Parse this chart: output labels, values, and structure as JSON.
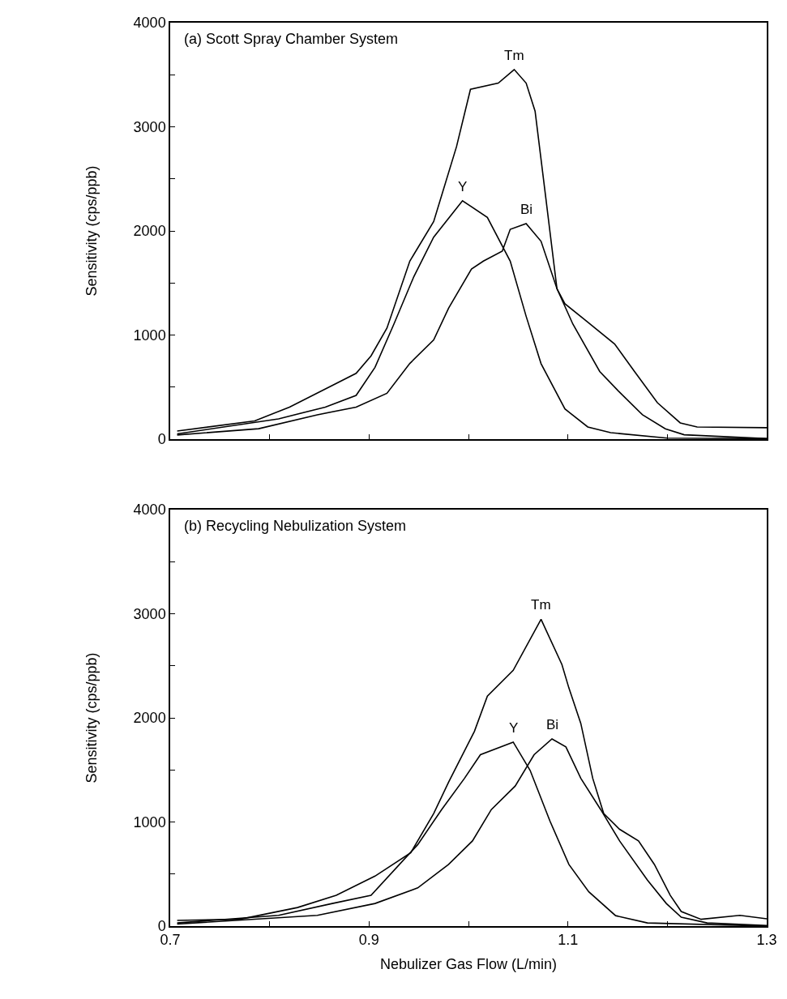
{
  "chart_data": [
    {
      "type": "line",
      "title": "(a) Scott Spray Chamber System",
      "ylabel": "Sensitivity (cps/ppb)",
      "xlim": [
        0.7,
        1.3
      ],
      "xticks": [
        {
          "value": 0.7,
          "label": null
        },
        {
          "value": 0.8,
          "label": null
        },
        {
          "value": 0.9,
          "label": null
        },
        {
          "value": 1.0,
          "label": null
        },
        {
          "value": 1.1,
          "label": null
        },
        {
          "value": 1.2,
          "label": null
        },
        {
          "value": 1.3,
          "label": null
        }
      ],
      "ylim": [
        0,
        4000
      ],
      "yticks": [
        0,
        {
          "value": 500,
          "label": null
        },
        1000,
        {
          "value": 1500,
          "label": null
        },
        2000,
        {
          "value": 2500,
          "label": null
        },
        3000,
        {
          "value": 3500,
          "label": null
        },
        4000
      ],
      "tick_labels": "y",
      "legend": false,
      "line_style": "solid",
      "marker": "none",
      "series": [
        {
          "name": "Y",
          "color": "#000000",
          "x": [
            0.707,
            0.809,
            0.856,
            0.887,
            0.906,
            0.925,
            0.945,
            0.965,
            0.994,
            1.019,
            1.042,
            1.058,
            1.073,
            1.097,
            1.12,
            1.143,
            1.2,
            1.3
          ],
          "values": [
            50,
            195,
            308,
            420,
            690,
            1105,
            1560,
            1940,
            2290,
            2130,
            1710,
            1180,
            725,
            290,
            117,
            62,
            10,
            5
          ]
        },
        {
          "name": "Bi",
          "color": "#000000",
          "x": [
            0.707,
            0.789,
            0.848,
            0.887,
            0.918,
            0.941,
            0.965,
            0.98,
            1.003,
            1.015,
            1.034,
            1.042,
            1.058,
            1.073,
            1.089,
            1.105,
            1.132,
            1.151,
            1.175,
            1.198,
            1.217,
            1.3
          ],
          "values": [
            40,
            100,
            234,
            308,
            440,
            727,
            953,
            1258,
            1633,
            1710,
            1805,
            2015,
            2070,
            1900,
            1445,
            1105,
            650,
            460,
            234,
            100,
            42,
            5
          ]
        },
        {
          "name": "Tm",
          "color": "#000000",
          "x": [
            0.707,
            0.785,
            0.82,
            0.863,
            0.887,
            0.902,
            0.918,
            0.941,
            0.965,
            0.988,
            1.002,
            1.03,
            1.046,
            1.058,
            1.067,
            1.078,
            1.089,
            1.097,
            1.118,
            1.147,
            1.167,
            1.19,
            1.213,
            1.23,
            1.3
          ],
          "values": [
            78,
            175,
            308,
            516,
            632,
            800,
            1066,
            1710,
            2090,
            2810,
            3360,
            3420,
            3550,
            3420,
            3150,
            2300,
            1445,
            1300,
            1140,
            914,
            650,
            350,
            156,
            117,
            110
          ]
        }
      ]
    },
    {
      "type": "line",
      "title": "(b) Recycling Nebulization System",
      "ylabel": "Sensitivity (cps/ppb)",
      "xlabel": "Nebulizer Gas Flow (L/min)",
      "xlim": [
        0.7,
        1.3
      ],
      "xticks": [
        0.7,
        {
          "value": 0.8,
          "label": null
        },
        0.9,
        {
          "value": 1.0,
          "label": null
        },
        1.1,
        {
          "value": 1.2,
          "label": null
        },
        1.3
      ],
      "ylim": [
        0,
        4000
      ],
      "yticks": [
        0,
        {
          "value": 500,
          "label": null
        },
        1000,
        {
          "value": 1500,
          "label": null
        },
        2000,
        {
          "value": 2500,
          "label": null
        },
        3000,
        {
          "value": 3500,
          "label": null
        },
        4000
      ],
      "legend": false,
      "line_style": "solid",
      "marker": "none",
      "series": [
        {
          "name": "Y",
          "color": "#000000",
          "x": [
            0.707,
            0.809,
            0.863,
            0.902,
            0.949,
            0.973,
            0.996,
            1.012,
            1.045,
            1.062,
            1.082,
            1.101,
            1.121,
            1.148,
            1.18,
            1.3
          ],
          "values": [
            30,
            103,
            217,
            295,
            783,
            1119,
            1419,
            1646,
            1767,
            1496,
            1008,
            592,
            329,
            100,
            30,
            0
          ]
        },
        {
          "name": "Bi",
          "color": "#000000",
          "x": [
            0.707,
            0.848,
            0.906,
            0.949,
            0.98,
            1.004,
            1.023,
            1.047,
            1.066,
            1.084,
            1.098,
            1.113,
            1.133,
            1.152,
            1.18,
            1.199,
            1.214,
            1.24,
            1.3
          ],
          "values": [
            20,
            103,
            217,
            367,
            592,
            818,
            1119,
            1345,
            1646,
            1798,
            1721,
            1419,
            1119,
            818,
            442,
            217,
            85,
            30,
            5
          ]
        },
        {
          "name": "Tm",
          "color": "#000000",
          "x": [
            0.707,
            0.77,
            0.828,
            0.867,
            0.906,
            0.942,
            0.965,
            0.98,
            1.006,
            1.019,
            1.045,
            1.073,
            1.094,
            1.101,
            1.113,
            1.125,
            1.136,
            1.152,
            1.171,
            1.187,
            1.203,
            1.214,
            1.234,
            1.273,
            1.3
          ],
          "values": [
            55,
            65,
            178,
            295,
            480,
            705,
            1081,
            1382,
            1871,
            2209,
            2457,
            2946,
            2512,
            2287,
            1946,
            1419,
            1081,
            930,
            818,
            592,
            295,
            140,
            65,
            103,
            70
          ]
        }
      ]
    }
  ]
}
